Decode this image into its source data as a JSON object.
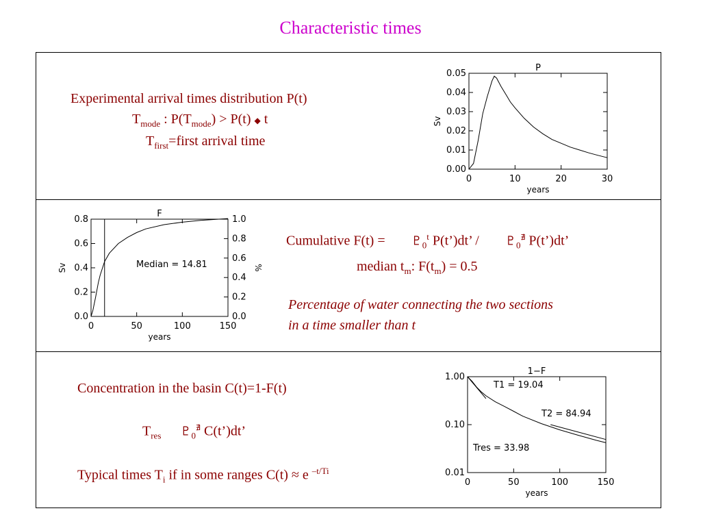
{
  "slide_title": "Characteristic times",
  "panel1": {
    "line1": "Experimental arrival times distribution P(t)",
    "line2": {
      "t": "T",
      "sub1": "mode",
      "mid": " : P(T",
      "sub2": "mode",
      "end": ") > P(t) ",
      "diamond": "◆",
      "tail": " t"
    },
    "line3": {
      "t": "T",
      "sub": "first",
      "rest": "=first arrival time"
    }
  },
  "panel2": {
    "cumulative": {
      "prefix": "Cumulative F(t) =",
      "int1": "♇",
      "sub1": "0",
      "sup1": "t",
      "body1": " P(t’)dt’ /",
      "int2": "♇",
      "sub2": "0",
      "sup2": "∄",
      "body2": " P(t’)dt’"
    },
    "median": {
      "a": "median t",
      "sub": "m",
      "b": ":    F(t",
      "sub2": "m",
      "c": ") = 0.5"
    },
    "italic1": "Percentage of water connecting the two sections",
    "italic2": "in a time smaller than t"
  },
  "panel3": {
    "concentration": "Concentration in the basin C(t)=1-F(t)",
    "tres": {
      "t": "T",
      "sub": "res",
      "int": "♇",
      "isub": "0",
      "isup": "∄",
      "body": " C(t’)dt’"
    },
    "typical": {
      "a": "Typical times T",
      "sub": "i",
      "b": " if in some ranges C(t) ≈ e ",
      "sup": "–t/Ti"
    }
  },
  "chart_data": [
    {
      "type": "line",
      "title": "P",
      "xlabel": "years",
      "ylabel": "Sv",
      "xlim": [
        0,
        30
      ],
      "ylim": [
        0,
        0.05
      ],
      "xticks": [
        "0",
        "10",
        "20",
        "30"
      ],
      "yticks": [
        "0.00",
        "0.01",
        "0.02",
        "0.03",
        "0.04",
        "0.05"
      ],
      "series": [
        {
          "x": [
            0,
            1,
            2,
            3,
            4,
            5,
            5.5,
            6,
            7,
            8,
            9,
            10,
            12,
            14,
            16,
            18,
            20,
            22,
            24,
            26,
            28,
            30
          ],
          "values": [
            0.0,
            0.003,
            0.015,
            0.029,
            0.038,
            0.046,
            0.0485,
            0.0475,
            0.043,
            0.039,
            0.035,
            0.032,
            0.0265,
            0.022,
            0.0185,
            0.0155,
            0.0135,
            0.0115,
            0.01,
            0.0085,
            0.0072,
            0.006
          ]
        }
      ]
    },
    {
      "type": "line",
      "title": "F",
      "xlabel": "years",
      "ylabel": "Sv",
      "y2label": "%",
      "xlim": [
        0,
        150
      ],
      "ylim": [
        0,
        0.8
      ],
      "y2lim": [
        0,
        1.0
      ],
      "xticks": [
        "0",
        "50",
        "100",
        "150"
      ],
      "yticks": [
        "0.0",
        "0.2",
        "0.4",
        "0.6",
        "0.8"
      ],
      "y2ticks": [
        "0.0",
        "0.2",
        "0.4",
        "0.6",
        "0.8",
        "1.0"
      ],
      "annotation": "Median = 14.81",
      "median_x": 14.81,
      "series": [
        {
          "x": [
            0,
            2,
            5,
            8,
            10,
            14.81,
            20,
            30,
            40,
            50,
            60,
            80,
            100,
            120,
            140,
            150
          ],
          "values": [
            0,
            0.05,
            0.16,
            0.28,
            0.34,
            0.45,
            0.52,
            0.6,
            0.65,
            0.69,
            0.72,
            0.755,
            0.775,
            0.79,
            0.8,
            0.805
          ]
        }
      ]
    },
    {
      "type": "line",
      "title": "1−F",
      "xlabel": "years",
      "ylabel": "",
      "xlim": [
        0,
        150
      ],
      "ylim": [
        0.01,
        1.0
      ],
      "yscale": "log",
      "xticks": [
        "0",
        "50",
        "100",
        "150"
      ],
      "yticks": [
        "0.01",
        "0.10",
        "1.00"
      ],
      "annotations": [
        "T1 = 19.04",
        "T2 = 84.94",
        "Tres = 33.98"
      ],
      "series": [
        {
          "name": "",
          "x": [
            0,
            5,
            10,
            15,
            20,
            30,
            40,
            50,
            60,
            80,
            100,
            120,
            140,
            150
          ],
          "values": [
            1.0,
            0.8,
            0.6,
            0.48,
            0.4,
            0.3,
            0.24,
            0.19,
            0.15,
            0.105,
            0.078,
            0.06,
            0.047,
            0.042
          ]
        },
        {
          "name": "",
          "x": [
            0,
            20
          ],
          "values": [
            1.0,
            0.35
          ]
        },
        {
          "name": "",
          "x": [
            90,
            150
          ],
          "values": [
            0.1,
            0.049
          ]
        }
      ]
    }
  ]
}
